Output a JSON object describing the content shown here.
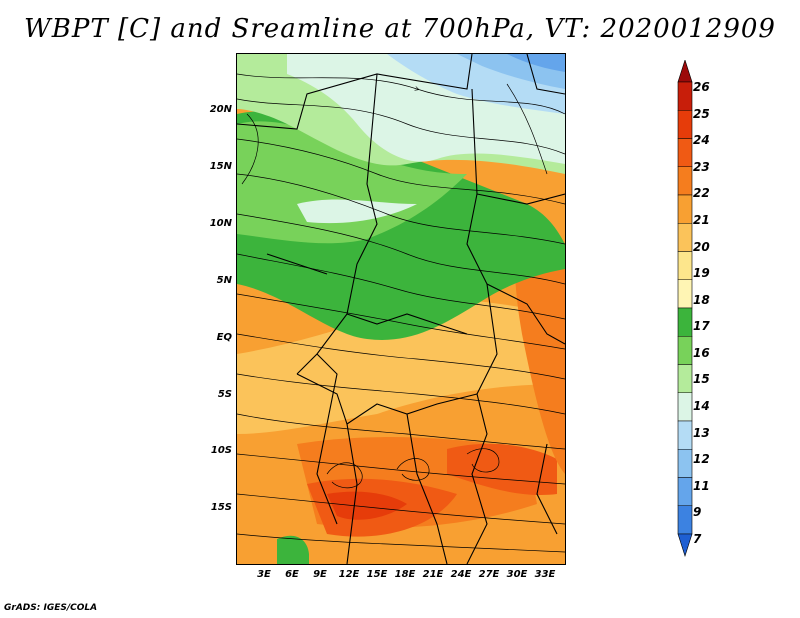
{
  "title": "WBPT [C] and Sreamline at 700hPa, VT: 2020012909",
  "credit": "GrADS: IGES/COLA",
  "map": {
    "lat_labels": [
      "20N",
      "15N",
      "10N",
      "5N",
      "EQ",
      "5S",
      "10S",
      "15S"
    ],
    "lon_labels": [
      "3E",
      "6E",
      "9E",
      "12E",
      "15E",
      "18E",
      "21E",
      "24E",
      "27E",
      "30E",
      "33E"
    ]
  },
  "colorbar": {
    "levels": [
      "26",
      "25",
      "24",
      "23",
      "22",
      "21",
      "20",
      "19",
      "18",
      "17",
      "16",
      "15",
      "14",
      "13",
      "12",
      "11",
      "9",
      "7"
    ],
    "colors": [
      "#9c0a0a",
      "#c81e0a",
      "#e63c0a",
      "#f05a14",
      "#f57d1e",
      "#f8a032",
      "#fbc35a",
      "#fde68c",
      "#fff5b4",
      "#3cb43c",
      "#78d25a",
      "#b4eb9b",
      "#dcf5e6",
      "#b4dcf5",
      "#8cc3f0",
      "#64a5eb",
      "#3c82e1",
      "#1e5fd2"
    ]
  }
}
